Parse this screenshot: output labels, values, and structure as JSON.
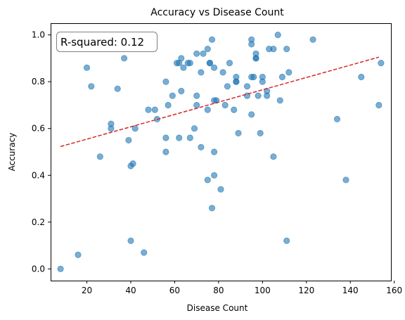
{
  "chart_data": {
    "type": "scatter",
    "title": "Accuracy vs Disease Count",
    "xlabel": "Disease Count",
    "ylabel": "Accuracy",
    "xlim": [
      3.5,
      158.5
    ],
    "ylim": [
      -0.05,
      1.05
    ],
    "xticks": [
      20,
      40,
      60,
      80,
      100,
      120,
      140,
      160
    ],
    "yticks": [
      0.0,
      0.2,
      0.4,
      0.6,
      0.8,
      1.0
    ],
    "xtick_labels": [
      "20",
      "40",
      "60",
      "80",
      "100",
      "120",
      "140",
      "160"
    ],
    "ytick_labels": [
      "0.0",
      "0.2",
      "0.4",
      "0.6",
      "0.8",
      "1.0"
    ],
    "annotation": "R-squared: 0.12",
    "point_color": "#1f77b4",
    "fit_color": "#d62728",
    "series": [
      {
        "values": [
          [
            8,
            0.0
          ],
          [
            16,
            0.06
          ],
          [
            20,
            0.86
          ],
          [
            22,
            0.78
          ],
          [
            26,
            0.48
          ],
          [
            31,
            0.62
          ],
          [
            31,
            0.6
          ],
          [
            34,
            0.77
          ],
          [
            37,
            0.9
          ],
          [
            39,
            0.55
          ],
          [
            40,
            0.44
          ],
          [
            40,
            0.12
          ],
          [
            41,
            0.45
          ],
          [
            42,
            0.6
          ],
          [
            46,
            0.07
          ],
          [
            48,
            0.68
          ],
          [
            51,
            0.68
          ],
          [
            52,
            0.64
          ],
          [
            56,
            0.8
          ],
          [
            56,
            0.56
          ],
          [
            56,
            0.5
          ],
          [
            57,
            0.7
          ],
          [
            59,
            0.74
          ],
          [
            61,
            0.88
          ],
          [
            62,
            0.88
          ],
          [
            62,
            0.56
          ],
          [
            63,
            0.9
          ],
          [
            63,
            0.76
          ],
          [
            64,
            0.86
          ],
          [
            66,
            0.88
          ],
          [
            67,
            0.88
          ],
          [
            67,
            0.56
          ],
          [
            69,
            0.6
          ],
          [
            70,
            0.92
          ],
          [
            70,
            0.74
          ],
          [
            70,
            0.7
          ],
          [
            72,
            0.84
          ],
          [
            72,
            0.52
          ],
          [
            73,
            0.92
          ],
          [
            75,
            0.94
          ],
          [
            75,
            0.68
          ],
          [
            75,
            0.38
          ],
          [
            76,
            0.88
          ],
          [
            76,
            0.88
          ],
          [
            77,
            0.98
          ],
          [
            77,
            0.26
          ],
          [
            78,
            0.86
          ],
          [
            78,
            0.72
          ],
          [
            78,
            0.5
          ],
          [
            78,
            0.4
          ],
          [
            79,
            0.72
          ],
          [
            81,
            0.34
          ],
          [
            82,
            0.84
          ],
          [
            83,
            0.7
          ],
          [
            84,
            0.78
          ],
          [
            85,
            0.88
          ],
          [
            87,
            0.68
          ],
          [
            88,
            0.82
          ],
          [
            88,
            0.8
          ],
          [
            88,
            0.8
          ],
          [
            89,
            0.58
          ],
          [
            93,
            0.78
          ],
          [
            93,
            0.74
          ],
          [
            95,
            0.98
          ],
          [
            95,
            0.96
          ],
          [
            95,
            0.66
          ],
          [
            95,
            0.82
          ],
          [
            96,
            0.82
          ],
          [
            97,
            0.92
          ],
          [
            97,
            0.9
          ],
          [
            97,
            0.9
          ],
          [
            98,
            0.74
          ],
          [
            99,
            0.58
          ],
          [
            100,
            0.82
          ],
          [
            100,
            0.8
          ],
          [
            102,
            0.76
          ],
          [
            102,
            0.74
          ],
          [
            103,
            0.94
          ],
          [
            105,
            0.94
          ],
          [
            105,
            0.48
          ],
          [
            107,
            1.0
          ],
          [
            108,
            0.72
          ],
          [
            109,
            0.82
          ],
          [
            111,
            0.94
          ],
          [
            111,
            0.12
          ],
          [
            112,
            0.84
          ],
          [
            123,
            0.98
          ],
          [
            134,
            0.64
          ],
          [
            138,
            0.38
          ],
          [
            145,
            0.82
          ],
          [
            153,
            0.7
          ],
          [
            154,
            0.88
          ]
        ]
      }
    ],
    "fit_line": {
      "x": [
        8,
        153
      ],
      "y": [
        0.523,
        0.905
      ]
    }
  }
}
